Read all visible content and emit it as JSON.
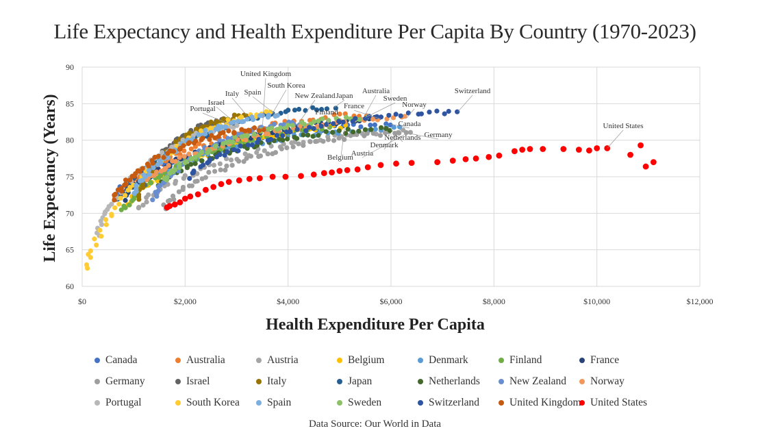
{
  "chart_data": {
    "type": "scatter",
    "title": "Life Expectancy and Health Expenditure Per Capita By Country (1970-2023)",
    "xlabel": "Health Expenditure Per Capita",
    "ylabel": "Life Expectancy (Years)",
    "xlim": [
      0,
      12000
    ],
    "ylim": [
      60,
      90
    ],
    "x_ticks": [
      0,
      2000,
      4000,
      6000,
      8000,
      10000,
      12000
    ],
    "x_tick_labels": [
      "$0",
      "$2,000",
      "$4,000",
      "$6,000",
      "$8,000",
      "$10,000",
      "$12,000"
    ],
    "y_ticks": [
      60,
      65,
      70,
      75,
      80,
      85,
      90
    ],
    "grid": true,
    "legend_position": "bottom",
    "source": "Data Source: Our World in Data",
    "series": [
      {
        "name": "Canada",
        "color": "#4472C4",
        "label": "Canada",
        "start": [
          700,
          72.8
        ],
        "end": [
          6000,
          82.2
        ]
      },
      {
        "name": "Australia",
        "color": "#ED7D31",
        "label": "Australia",
        "start": [
          650,
          71.8
        ],
        "end": [
          5500,
          83.5
        ]
      },
      {
        "name": "Austria",
        "color": "#A5A5A5",
        "label": "Austria",
        "start": [
          1100,
          70.6
        ],
        "end": [
          6400,
          81.3
        ]
      },
      {
        "name": "Belgium",
        "color": "#FFC000",
        "label": "Belgium",
        "start": [
          900,
          71.0
        ],
        "end": [
          5100,
          81.8
        ]
      },
      {
        "name": "Denmark",
        "color": "#5B9BD5",
        "label": "Denmark",
        "start": [
          1000,
          73.3
        ],
        "end": [
          6200,
          81.6
        ]
      },
      {
        "name": "Finland",
        "color": "#70AD47",
        "label": "Finland",
        "start": [
          800,
          70.2
        ],
        "end": [
          4800,
          81.6
        ]
      },
      {
        "name": "France",
        "color": "#264478",
        "label": "France",
        "start": [
          800,
          72.0
        ],
        "end": [
          5800,
          82.9
        ]
      },
      {
        "name": "Germany",
        "color": "#9E9E9E",
        "label": "Germany",
        "start": [
          1600,
          70.8
        ],
        "end": [
          6300,
          81.0
        ]
      },
      {
        "name": "Israel",
        "color": "#636363",
        "label": "Israel",
        "start": [
          1200,
          74.0
        ],
        "end": [
          2900,
          82.8
        ]
      },
      {
        "name": "Italy",
        "color": "#997300",
        "label": "Italy",
        "start": [
          1100,
          72.0
        ],
        "end": [
          3200,
          83.4
        ]
      },
      {
        "name": "Japan",
        "color": "#255E91",
        "label": "Japan",
        "start": [
          700,
          72.0
        ],
        "end": [
          4900,
          84.5
        ]
      },
      {
        "name": "Netherlands",
        "color": "#43682B",
        "label": "Netherlands",
        "start": [
          1500,
          73.8
        ],
        "end": [
          6000,
          81.5
        ]
      },
      {
        "name": "New Zealand",
        "color": "#698ED0",
        "label": "New Zealand",
        "start": [
          1400,
          71.8
        ],
        "end": [
          4200,
          82.3
        ]
      },
      {
        "name": "Norway",
        "color": "#F1975A",
        "label": "Norway",
        "start": [
          1300,
          74.5
        ],
        "end": [
          6300,
          83.0
        ]
      },
      {
        "name": "Portugal",
        "color": "#B7B7B7",
        "label": "Portugal",
        "start": [
          300,
          66.8
        ],
        "end": [
          3000,
          81.8
        ]
      },
      {
        "name": "South Korea",
        "color": "#FFCD33",
        "label": "South Korea",
        "start": [
          80,
          62.3
        ],
        "end": [
          3700,
          83.7
        ]
      },
      {
        "name": "Spain",
        "color": "#7CAFDD",
        "label": "Spain",
        "start": [
          1000,
          72.5
        ],
        "end": [
          3800,
          83.3
        ]
      },
      {
        "name": "Sweden",
        "color": "#8CC168",
        "label": "Sweden",
        "start": [
          1600,
          74.5
        ],
        "end": [
          5500,
          83.1
        ]
      },
      {
        "name": "Switzerland",
        "color": "#2F54A0",
        "label": "Switzerland",
        "start": [
          2100,
          75.0
        ],
        "end": [
          7300,
          83.9
        ]
      },
      {
        "name": "United Kingdom",
        "color": "#C55A11",
        "label": "United Kingdom",
        "start": [
          650,
          72.0
        ],
        "end": [
          3500,
          81.5
        ]
      },
      {
        "name": "United States",
        "color": "#FF0000",
        "label": "United States",
        "points": [
          [
            1650,
            70.8
          ],
          [
            1700,
            71.0
          ],
          [
            1800,
            71.2
          ],
          [
            1900,
            71.5
          ],
          [
            2000,
            72.0
          ],
          [
            2100,
            72.3
          ],
          [
            2250,
            72.6
          ],
          [
            2400,
            73.2
          ],
          [
            2550,
            73.6
          ],
          [
            2700,
            74.0
          ],
          [
            2850,
            74.3
          ],
          [
            3050,
            74.5
          ],
          [
            3250,
            74.7
          ],
          [
            3450,
            74.8
          ],
          [
            3700,
            75.0
          ],
          [
            3950,
            75.0
          ],
          [
            4250,
            75.1
          ],
          [
            4500,
            75.3
          ],
          [
            4700,
            75.5
          ],
          [
            4850,
            75.6
          ],
          [
            5000,
            75.8
          ],
          [
            5150,
            75.9
          ],
          [
            5350,
            76.0
          ],
          [
            5550,
            76.3
          ],
          [
            5800,
            76.6
          ],
          [
            6100,
            76.8
          ],
          [
            6400,
            76.9
          ],
          [
            6900,
            77.0
          ],
          [
            7200,
            77.2
          ],
          [
            7450,
            77.4
          ],
          [
            7650,
            77.5
          ],
          [
            7900,
            77.7
          ],
          [
            8100,
            77.9
          ],
          [
            8400,
            78.5
          ],
          [
            8550,
            78.7
          ],
          [
            8700,
            78.8
          ],
          [
            8950,
            78.8
          ],
          [
            9350,
            78.8
          ],
          [
            9650,
            78.7
          ],
          [
            9850,
            78.6
          ],
          [
            10000,
            78.9
          ],
          [
            10200,
            78.9
          ],
          [
            10650,
            78.0
          ],
          [
            10850,
            79.3
          ],
          [
            10950,
            76.4
          ],
          [
            11100,
            77.0
          ]
        ]
      }
    ]
  }
}
